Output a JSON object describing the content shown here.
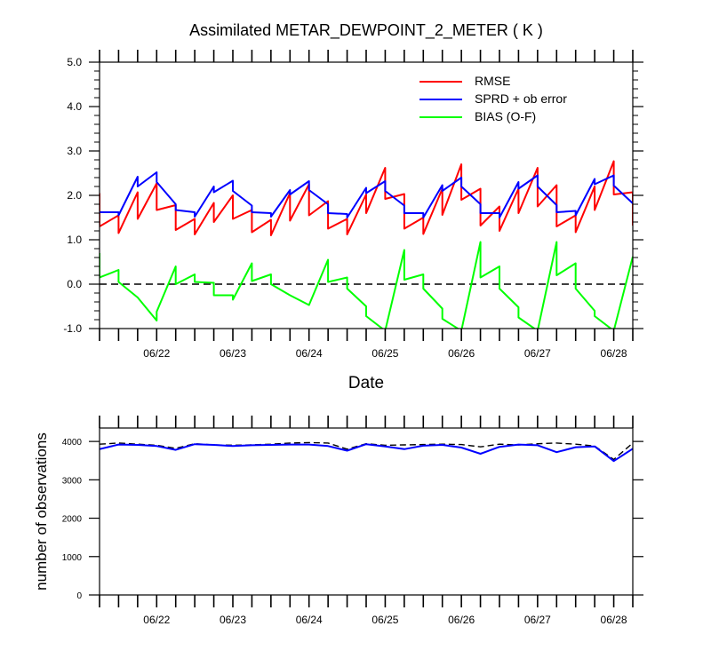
{
  "chart_data": [
    {
      "type": "line",
      "title": "Assimilated METAR_DEWPOINT_2_METER ( K )",
      "xlabel": "Date",
      "ylabel": "",
      "x_tick_labels": [
        "06/22",
        "06/23",
        "06/24",
        "06/25",
        "06/26",
        "06/27",
        "06/28"
      ],
      "x_tick_values": [
        22,
        23,
        24,
        25,
        26,
        27,
        28
      ],
      "xlim": [
        21.25,
        28.25
      ],
      "ylim": [
        -1.0,
        5.0
      ],
      "y_ticks": [
        -1.0,
        0.0,
        1.0,
        2.0,
        3.0,
        4.0,
        5.0
      ],
      "y_tick_labels": [
        "-1.0",
        "0.0",
        "1.0",
        "2.0",
        "3.0",
        "4.0",
        "5.0"
      ],
      "zero_line": "dashed",
      "legend": {
        "placement": "top-right"
      },
      "series": [
        {
          "name": "RMSE",
          "color": "#ff0000",
          "points": [
            [
              21.25,
              2.05
            ],
            [
              21.25,
              1.3
            ],
            [
              21.5,
              1.55
            ],
            [
              21.5,
              1.15
            ],
            [
              21.75,
              2.07
            ],
            [
              21.75,
              1.47
            ],
            [
              22.0,
              2.27
            ],
            [
              22.0,
              1.67
            ],
            [
              22.25,
              1.78
            ],
            [
              22.25,
              1.22
            ],
            [
              22.5,
              1.47
            ],
            [
              22.5,
              1.12
            ],
            [
              22.75,
              1.83
            ],
            [
              22.75,
              1.4
            ],
            [
              23.0,
              2.0
            ],
            [
              23.0,
              1.47
            ],
            [
              23.25,
              1.67
            ],
            [
              23.25,
              1.17
            ],
            [
              23.5,
              1.45
            ],
            [
              23.5,
              1.1
            ],
            [
              23.75,
              2.05
            ],
            [
              23.75,
              1.43
            ],
            [
              24.0,
              2.25
            ],
            [
              24.0,
              1.55
            ],
            [
              24.25,
              1.87
            ],
            [
              24.25,
              1.25
            ],
            [
              24.5,
              1.47
            ],
            [
              24.5,
              1.12
            ],
            [
              24.75,
              2.02
            ],
            [
              24.75,
              1.6
            ],
            [
              25.0,
              2.62
            ],
            [
              25.0,
              1.92
            ],
            [
              25.25,
              2.03
            ],
            [
              25.25,
              1.25
            ],
            [
              25.5,
              1.5
            ],
            [
              25.5,
              1.13
            ],
            [
              25.75,
              2.15
            ],
            [
              25.75,
              1.56
            ],
            [
              26.0,
              2.7
            ],
            [
              26.0,
              1.9
            ],
            [
              26.25,
              2.15
            ],
            [
              26.25,
              1.32
            ],
            [
              26.5,
              1.75
            ],
            [
              26.5,
              1.2
            ],
            [
              26.75,
              2.15
            ],
            [
              26.75,
              1.6
            ],
            [
              27.0,
              2.62
            ],
            [
              27.0,
              1.75
            ],
            [
              27.25,
              2.23
            ],
            [
              27.25,
              1.3
            ],
            [
              27.5,
              1.55
            ],
            [
              27.5,
              1.17
            ],
            [
              27.75,
              2.2
            ],
            [
              27.75,
              1.67
            ],
            [
              28.0,
              2.77
            ],
            [
              28.0,
              2.02
            ],
            [
              28.25,
              2.07
            ],
            [
              28.25,
              1.32
            ]
          ]
        },
        {
          "name": "SPRD + ob error",
          "color": "#0000ff",
          "points": [
            [
              21.25,
              1.62
            ],
            [
              21.5,
              1.62
            ],
            [
              21.5,
              1.55
            ],
            [
              21.75,
              2.42
            ],
            [
              21.75,
              2.2
            ],
            [
              22.0,
              2.52
            ],
            [
              22.0,
              2.3
            ],
            [
              22.25,
              1.8
            ],
            [
              22.25,
              1.67
            ],
            [
              22.5,
              1.62
            ],
            [
              22.5,
              1.52
            ],
            [
              22.75,
              2.2
            ],
            [
              22.75,
              2.07
            ],
            [
              23.0,
              2.33
            ],
            [
              23.0,
              2.1
            ],
            [
              23.25,
              1.77
            ],
            [
              23.25,
              1.62
            ],
            [
              23.5,
              1.6
            ],
            [
              23.5,
              1.52
            ],
            [
              23.75,
              2.12
            ],
            [
              23.75,
              2.02
            ],
            [
              24.0,
              2.32
            ],
            [
              24.0,
              2.12
            ],
            [
              24.25,
              1.8
            ],
            [
              24.25,
              1.6
            ],
            [
              24.5,
              1.58
            ],
            [
              24.5,
              1.5
            ],
            [
              24.75,
              2.17
            ],
            [
              24.75,
              2.05
            ],
            [
              25.0,
              2.32
            ],
            [
              25.0,
              2.1
            ],
            [
              25.25,
              1.77
            ],
            [
              25.25,
              1.6
            ],
            [
              25.5,
              1.6
            ],
            [
              25.5,
              1.5
            ],
            [
              25.75,
              2.23
            ],
            [
              25.75,
              2.1
            ],
            [
              26.0,
              2.4
            ],
            [
              26.0,
              2.2
            ],
            [
              26.25,
              1.8
            ],
            [
              26.25,
              1.6
            ],
            [
              26.5,
              1.6
            ],
            [
              26.5,
              1.5
            ],
            [
              26.75,
              2.3
            ],
            [
              26.75,
              2.15
            ],
            [
              27.0,
              2.45
            ],
            [
              27.0,
              2.2
            ],
            [
              27.25,
              1.78
            ],
            [
              27.25,
              1.62
            ],
            [
              27.5,
              1.65
            ],
            [
              27.5,
              1.55
            ],
            [
              27.75,
              2.37
            ],
            [
              27.75,
              2.25
            ],
            [
              28.0,
              2.45
            ],
            [
              28.0,
              2.22
            ],
            [
              28.25,
              1.82
            ]
          ]
        },
        {
          "name": "BIAS (O-F)",
          "color": "#00ff00",
          "points": [
            [
              21.25,
              0.7
            ],
            [
              21.25,
              0.15
            ],
            [
              21.5,
              0.32
            ],
            [
              21.5,
              0.05
            ],
            [
              21.75,
              -0.3
            ],
            [
              22.0,
              -0.82
            ],
            [
              22.0,
              -0.62
            ],
            [
              22.25,
              0.4
            ],
            [
              22.25,
              0.0
            ],
            [
              22.5,
              0.22
            ],
            [
              22.5,
              0.05
            ],
            [
              22.75,
              0.03
            ],
            [
              22.75,
              -0.25
            ],
            [
              23.0,
              -0.25
            ],
            [
              23.0,
              -0.35
            ],
            [
              23.25,
              0.47
            ],
            [
              23.25,
              0.07
            ],
            [
              23.5,
              0.22
            ],
            [
              23.5,
              0.0
            ],
            [
              23.75,
              -0.25
            ],
            [
              24.0,
              -0.47
            ],
            [
              24.25,
              0.55
            ],
            [
              24.25,
              0.05
            ],
            [
              24.5,
              0.15
            ],
            [
              24.5,
              -0.1
            ],
            [
              24.75,
              -0.5
            ],
            [
              24.75,
              -0.72
            ],
            [
              25.0,
              -1.05
            ],
            [
              25.25,
              0.77
            ],
            [
              25.25,
              0.1
            ],
            [
              25.5,
              0.22
            ],
            [
              25.5,
              -0.1
            ],
            [
              25.75,
              -0.55
            ],
            [
              25.75,
              -0.78
            ],
            [
              26.0,
              -1.05
            ],
            [
              26.25,
              0.95
            ],
            [
              26.25,
              0.15
            ],
            [
              26.5,
              0.4
            ],
            [
              26.5,
              -0.1
            ],
            [
              26.75,
              -0.52
            ],
            [
              26.75,
              -0.75
            ],
            [
              27.0,
              -1.05
            ],
            [
              27.25,
              0.95
            ],
            [
              27.25,
              0.2
            ],
            [
              27.5,
              0.47
            ],
            [
              27.5,
              -0.1
            ],
            [
              27.75,
              -0.6
            ],
            [
              27.75,
              -0.72
            ],
            [
              28.0,
              -1.05
            ],
            [
              28.25,
              0.62
            ]
          ]
        }
      ]
    },
    {
      "type": "line",
      "title": "",
      "xlabel": "",
      "ylabel": "number of observations",
      "x_tick_labels": [
        "06/22",
        "06/23",
        "06/24",
        "06/25",
        "06/26",
        "06/27",
        "06/28"
      ],
      "x_tick_values": [
        22,
        23,
        24,
        25,
        26,
        27,
        28
      ],
      "xlim": [
        21.25,
        28.25
      ],
      "ylim": [
        0,
        4350
      ],
      "y_ticks": [
        0,
        1000,
        2000,
        3000,
        4000
      ],
      "y_tick_labels": [
        "0",
        "1000",
        "2000",
        "3000",
        "4000"
      ],
      "series": [
        {
          "color": "#000000",
          "style": "dashed",
          "x": [
            21.25,
            21.5,
            21.75,
            22.0,
            22.25,
            22.5,
            22.75,
            23.0,
            23.25,
            23.5,
            23.75,
            24.0,
            24.25,
            24.5,
            24.75,
            25.0,
            25.25,
            25.5,
            25.75,
            26.0,
            26.25,
            26.5,
            26.75,
            27.0,
            27.25,
            27.5,
            27.75,
            28.0,
            28.25
          ],
          "y": [
            3930,
            3960,
            3930,
            3900,
            3820,
            3940,
            3910,
            3900,
            3910,
            3930,
            3960,
            3970,
            3960,
            3800,
            3940,
            3900,
            3910,
            3920,
            3930,
            3920,
            3860,
            3930,
            3910,
            3940,
            3960,
            3930,
            3880,
            3530,
            3960
          ]
        },
        {
          "color": "#0000ff",
          "style": "solid",
          "x": [
            21.25,
            21.5,
            21.75,
            22.0,
            22.25,
            22.5,
            22.75,
            23.0,
            23.25,
            23.5,
            23.75,
            24.0,
            24.25,
            24.5,
            24.75,
            25.0,
            25.25,
            25.5,
            25.75,
            26.0,
            26.25,
            26.5,
            26.75,
            27.0,
            27.25,
            27.5,
            27.75,
            28.0,
            28.25
          ],
          "y": [
            3800,
            3920,
            3910,
            3880,
            3780,
            3930,
            3910,
            3880,
            3900,
            3910,
            3920,
            3920,
            3880,
            3760,
            3930,
            3870,
            3800,
            3890,
            3910,
            3840,
            3680,
            3860,
            3920,
            3900,
            3720,
            3850,
            3870,
            3490,
            3810
          ]
        }
      ]
    }
  ]
}
